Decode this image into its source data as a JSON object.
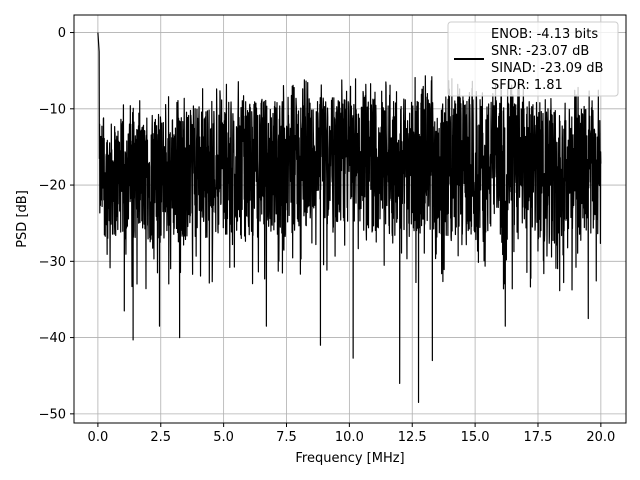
{
  "chart_data": {
    "type": "line",
    "title": "",
    "xlabel": "Frequency [MHz]",
    "ylabel": "PSD [dB]",
    "xlim": [
      -0.95,
      21.0
    ],
    "ylim": [
      -51.2,
      2.3
    ],
    "xticks": [
      0.0,
      2.5,
      5.0,
      7.5,
      10.0,
      12.5,
      15.0,
      17.5,
      20.0
    ],
    "xtick_labels": [
      "0.0",
      "2.5",
      "5.0",
      "7.5",
      "10.0",
      "12.5",
      "15.0",
      "17.5",
      "20.0"
    ],
    "yticks": [
      0,
      -10,
      -20,
      -30,
      -40,
      -50
    ],
    "ytick_labels": [
      "0",
      "−10",
      "−20",
      "−30",
      "−40",
      "−50"
    ],
    "grid": true,
    "legend_position": "top-right",
    "legend_lines": [
      "ENOB: -4.13 bits",
      "SNR: -23.07 dB",
      "SINAD: -23.09 dB",
      "SFDR: 1.81"
    ],
    "series_color": "#000000",
    "noise_band": {
      "x_range": [
        0.0,
        20.0
      ],
      "typical_top": [
        [
          0.0,
          -12
        ],
        [
          2.5,
          -11
        ],
        [
          5.0,
          -9
        ],
        [
          7.5,
          -8.5
        ],
        [
          10.0,
          -8.5
        ],
        [
          12.5,
          -8
        ],
        [
          15.0,
          -8.5
        ],
        [
          17.5,
          -9
        ],
        [
          20.0,
          -10
        ]
      ],
      "typical_bottom": [
        [
          0.0,
          -27
        ],
        [
          2.5,
          -28
        ],
        [
          5.0,
          -27
        ],
        [
          7.5,
          -27
        ],
        [
          10.0,
          -26
        ],
        [
          12.5,
          -27
        ],
        [
          15.0,
          -28
        ],
        [
          17.5,
          -28
        ],
        [
          20.0,
          -28
        ]
      ]
    },
    "peaks": [
      {
        "x": 0.0,
        "y": 0.0
      },
      {
        "x": 0.05,
        "y": -2.5
      }
    ],
    "notable_dips": [
      {
        "x": 1.4,
        "y": -40.3
      },
      {
        "x": 1.05,
        "y": -36.5
      },
      {
        "x": 2.45,
        "y": -38.5
      },
      {
        "x": 3.25,
        "y": -40.0
      },
      {
        "x": 6.7,
        "y": -38.5
      },
      {
        "x": 8.85,
        "y": -41.0
      },
      {
        "x": 10.15,
        "y": -42.7
      },
      {
        "x": 12.0,
        "y": -46.0
      },
      {
        "x": 12.75,
        "y": -48.5
      },
      {
        "x": 13.3,
        "y": -43.0
      },
      {
        "x": 16.2,
        "y": -38.5
      },
      {
        "x": 19.5,
        "y": -37.5
      }
    ]
  }
}
